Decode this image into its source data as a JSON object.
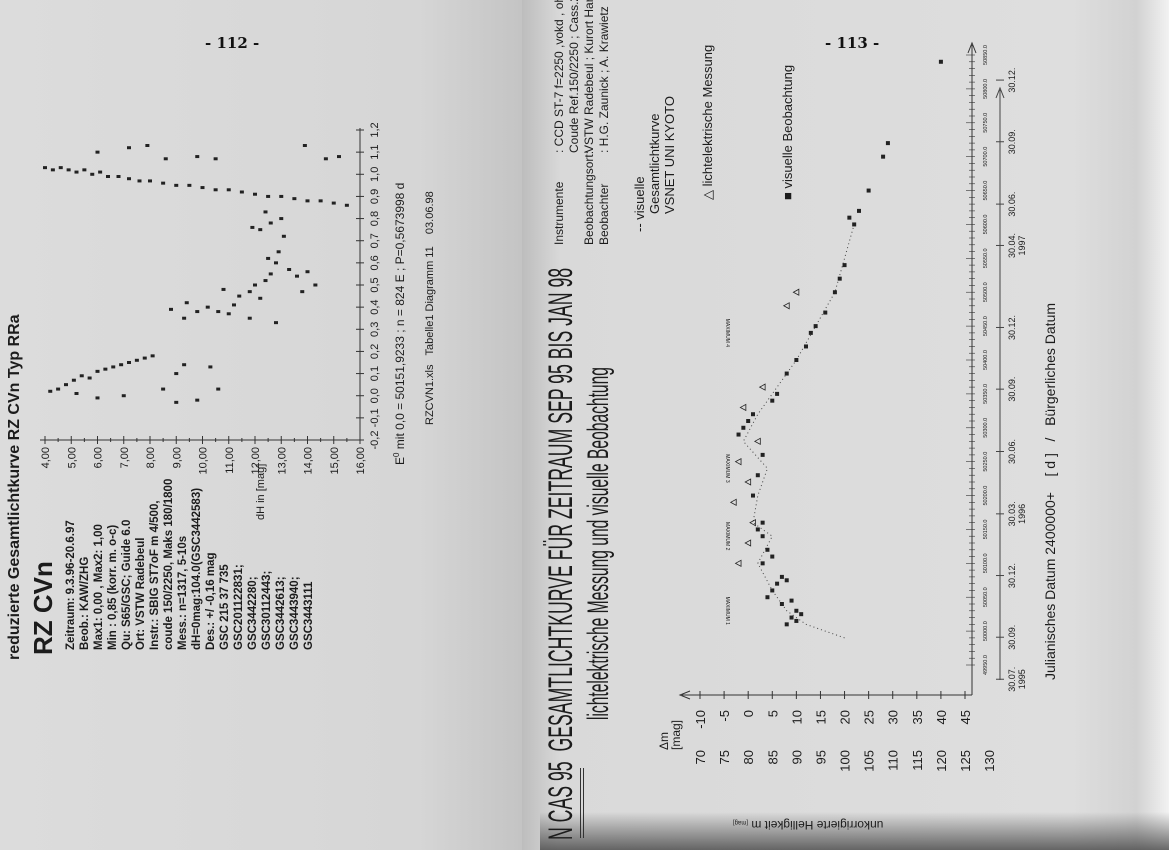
{
  "left_page": {
    "page_number": "- 112 -",
    "heading": "reduzierte Gesamtlichtkurve RZ CVn Typ RRa",
    "star": "RZ CVn",
    "info_lines": [
      "Zeitraum: 9.3.96-20.6.97",
      "Beob.: KAW/ZHG",
      "Max1: 0,00 , Max2: 1,00",
      "Min : 0,85 (korr. m. o-c)",
      "Qu: S65/GSC; Guide 6.0",
      "Ort: VSTW Radebeul",
      "Instr.: SBIG ST7oF m 4/500,",
      "coude 150/2250, Maks 180/1800",
      "Mess.: n=1317, 5-10s",
      "dH=0mag:104.0(GSC3442583)",
      "Des.: +/ -0,16 mag",
      "GSC 215 37 735",
      "GSC201122831;",
      "GSC3442280;",
      "GSC30112443;",
      "GSC3442613;",
      "GSC3443940;",
      "GSC3443111"
    ],
    "caption_epoch": "E",
    "caption_epoch_sup": "0",
    "caption_text": "mit 0,0 = 50151,9233 ; n = 824 E ; P=0,5673998 d",
    "caption_file": "RZCVN1.xls   Tabelle1 Diagramm 11    03.06.98"
  },
  "right_page": {
    "page_number": "- 113 -",
    "title_object": "N CAS 95",
    "title_main": "GESAMTLICHTKURVE FÜR ZEITRAUM SEP 95 BIS JAN 98",
    "subtitle": "lichtelektrische Messung und visuelle Beobachtung",
    "instruments": [
      {
        "label": "Instrumente",
        "value": ":  CCD ST-7 f=2250 ,vokd , ohne Filter , 5,6/1000"
      },
      {
        "label": "",
        "value": "Coude Ref.150/2250 ; Cass.200/3000 ; T 64/840"
      },
      {
        "label": "Beobachtungsort:",
        "value": "VSTW Radebeul ; Kurort Hartha"
      },
      {
        "label": "Beobachter",
        "value": ":  H.G. Zaunick ; A. Krawietz"
      }
    ],
    "legend": {
      "curve_marker": "--",
      "curve_lines": [
        "visuelle",
        "Gesamtlichtkurve",
        "VSNET UNI KYOTO"
      ],
      "photo_marker": "△",
      "photo_label": "lichtelektrische Messung",
      "visual_marker": "■",
      "visual_label": "visuelle Beobachtung"
    },
    "maxima_labels": [
      "MAXIMUM 1",
      "MAXIMUM 2",
      "MAXIMUM 3",
      "MAXIMUM 4"
    ],
    "y_label_delta": "Δm",
    "y_label_unit": "[mag]",
    "y2_label": "unkorrigierte Helligkeit  m",
    "y2_label_unit": "[mag]",
    "x_label": "Julianisches Datum 2400000+    [ d ]   /   Bürgerliches Datum"
  },
  "chart_data": [
    {
      "type": "scatter",
      "title": "reduzierte Gesamtlichtkurve RZ CVn Typ RRa",
      "xlabel": "E",
      "ylabel": "dH in [mag]",
      "xlim": [
        -0.2,
        1.2
      ],
      "ylim": [
        4,
        16
      ],
      "y_inverted": true,
      "x_ticks": [
        "-0,2",
        "-0,1",
        "0,0",
        "0,1",
        "0,2",
        "0,3",
        "0,4",
        "0,5",
        "0,6",
        "0,7",
        "0,8",
        "0,9",
        "1,0",
        "1,1",
        "1,2"
      ],
      "y_ticks": [
        "4,00",
        "5,00",
        "6,00",
        "7,00",
        "8,00",
        "9,00",
        "10,00",
        "11,00",
        "12,00",
        "13,00",
        "14,00",
        "15,00",
        "16,00"
      ],
      "grid": false,
      "points": [
        [
          1.03,
          4.0
        ],
        [
          1.02,
          4.3
        ],
        [
          1.03,
          4.6
        ],
        [
          1.02,
          4.9
        ],
        [
          1.01,
          5.2
        ],
        [
          1.02,
          5.5
        ],
        [
          1.0,
          5.8
        ],
        [
          1.01,
          6.1
        ],
        [
          0.99,
          6.4
        ],
        [
          0.99,
          6.8
        ],
        [
          0.98,
          7.2
        ],
        [
          0.97,
          7.6
        ],
        [
          0.97,
          8.0
        ],
        [
          0.96,
          8.5
        ],
        [
          0.95,
          9.0
        ],
        [
          0.95,
          9.5
        ],
        [
          0.94,
          10.0
        ],
        [
          0.93,
          10.5
        ],
        [
          0.93,
          11.0
        ],
        [
          0.92,
          11.5
        ],
        [
          0.91,
          12.0
        ],
        [
          0.9,
          12.5
        ],
        [
          0.9,
          13.0
        ],
        [
          0.89,
          13.5
        ],
        [
          0.88,
          14.0
        ],
        [
          0.88,
          14.5
        ],
        [
          0.87,
          15.0
        ],
        [
          0.86,
          15.5
        ],
        [
          1.1,
          6.0
        ],
        [
          1.12,
          7.2
        ],
        [
          1.13,
          7.9
        ],
        [
          1.07,
          8.6
        ],
        [
          1.08,
          9.8
        ],
        [
          1.07,
          10.5
        ],
        [
          1.13,
          13.9
        ],
        [
          1.08,
          15.2
        ],
        [
          1.07,
          14.7
        ],
        [
          0.39,
          8.8
        ],
        [
          0.35,
          9.3
        ],
        [
          0.42,
          9.4
        ],
        [
          0.38,
          9.8
        ],
        [
          0.4,
          10.2
        ],
        [
          0.38,
          10.6
        ],
        [
          0.37,
          11.0
        ],
        [
          0.41,
          11.2
        ],
        [
          0.45,
          11.4
        ],
        [
          0.47,
          11.8
        ],
        [
          0.5,
          12.0
        ],
        [
          0.52,
          12.4
        ],
        [
          0.55,
          12.6
        ],
        [
          0.6,
          12.8
        ],
        [
          0.62,
          12.5
        ],
        [
          0.65,
          12.9
        ],
        [
          0.57,
          13.3
        ],
        [
          0.54,
          13.6
        ],
        [
          0.56,
          14.0
        ],
        [
          0.5,
          14.3
        ],
        [
          0.47,
          13.8
        ],
        [
          0.44,
          12.2
        ],
        [
          0.35,
          11.8
        ],
        [
          0.33,
          12.8
        ],
        [
          0.48,
          10.8
        ],
        [
          0.75,
          12.2
        ],
        [
          0.78,
          12.6
        ],
        [
          0.8,
          13.0
        ],
        [
          0.83,
          12.4
        ],
        [
          0.72,
          13.1
        ],
        [
          0.76,
          11.9
        ],
        [
          0.02,
          4.2
        ],
        [
          0.03,
          4.5
        ],
        [
          0.05,
          4.8
        ],
        [
          0.07,
          5.1
        ],
        [
          0.09,
          5.4
        ],
        [
          0.08,
          5.7
        ],
        [
          0.11,
          6.0
        ],
        [
          0.12,
          6.3
        ],
        [
          0.13,
          6.6
        ],
        [
          0.14,
          6.9
        ],
        [
          0.15,
          7.2
        ],
        [
          0.16,
          7.5
        ],
        [
          0.17,
          7.8
        ],
        [
          0.18,
          8.1
        ],
        [
          0.01,
          5.2
        ],
        [
          -0.01,
          6.0
        ],
        [
          0.0,
          7.0
        ],
        [
          0.03,
          8.5
        ],
        [
          -0.03,
          9.0
        ],
        [
          0.14,
          9.3
        ],
        [
          0.13,
          10.3
        ],
        [
          0.03,
          10.6
        ],
        [
          -0.02,
          9.8
        ],
        [
          0.1,
          9.0
        ]
      ]
    },
    {
      "type": "scatter",
      "title": "N CAS 95 GESAMTLICHTKURVE FÜR ZEITRAUM SEP 95 BIS JAN 98",
      "xlabel": "Julianisches Datum 2400000+ [ d ] / Bürgerliches Datum",
      "ylabel": "Δm [mag]",
      "y2label": "unkorrigierte Helligkeit m [mag]",
      "xlim": [
        49950,
        50850
      ],
      "ylim": [
        -10,
        45
      ],
      "y_inverted": true,
      "x_ticks": [
        "49950.0",
        "50000.0",
        "50050.0",
        "50100.0",
        "50150.0",
        "50200.0",
        "50250.0",
        "50300.0",
        "50350.0",
        "50400.0",
        "50450.0",
        "50500.0",
        "50550.0",
        "50600.0",
        "50650.0",
        "50700.0",
        "50750.0",
        "50800.0",
        "50850.0"
      ],
      "y_ticks": [
        "-10",
        "-5",
        "0",
        "5",
        "10",
        "15",
        "20",
        "25",
        "30",
        "35",
        "40",
        "45"
      ],
      "y2_ticks": [
        "70",
        "75",
        "80",
        "85",
        "90",
        "95",
        "100",
        "105",
        "110",
        "115",
        "120",
        "125",
        "130"
      ],
      "date_ticks": [
        {
          "label": "30.07.",
          "year": "1995",
          "jd": 49929
        },
        {
          "label": "30.09.",
          "year": "",
          "jd": 49991
        },
        {
          "label": "30.12.",
          "year": "",
          "jd": 50082
        },
        {
          "label": "30.03.",
          "year": "1996",
          "jd": 50173
        },
        {
          "label": "30.06.",
          "year": "",
          "jd": 50265
        },
        {
          "label": "30.09.",
          "year": "",
          "jd": 50357
        },
        {
          "label": "30.12.",
          "year": "",
          "jd": 50448
        },
        {
          "label": "30.04.",
          "year": "1997",
          "jd": 50569
        },
        {
          "label": "30.06.",
          "year": "",
          "jd": 50630
        },
        {
          "label": "30.09.",
          "year": "",
          "jd": 50722
        },
        {
          "label": "30.12.",
          "year": "",
          "jd": 50813
        }
      ],
      "maxima_jd": [
        50030,
        50140,
        50240,
        50440
      ],
      "grid": false,
      "series": [
        {
          "name": "visuelle Beobachtung",
          "marker": "square",
          "points": [
            [
              50010,
              8
            ],
            [
              50015,
              10
            ],
            [
              50020,
              9
            ],
            [
              50025,
              11
            ],
            [
              50030,
              10
            ],
            [
              50040,
              7
            ],
            [
              50045,
              9
            ],
            [
              50050,
              4
            ],
            [
              50060,
              5
            ],
            [
              50070,
              6
            ],
            [
              50075,
              8
            ],
            [
              50080,
              7
            ],
            [
              50100,
              3
            ],
            [
              50110,
              5
            ],
            [
              50120,
              4
            ],
            [
              50140,
              3
            ],
            [
              50150,
              2
            ],
            [
              50160,
              3
            ],
            [
              50200,
              1
            ],
            [
              50230,
              2
            ],
            [
              50260,
              3
            ],
            [
              50290,
              -2
            ],
            [
              50300,
              -1
            ],
            [
              50310,
              0
            ],
            [
              50320,
              1
            ],
            [
              50340,
              5
            ],
            [
              50350,
              6
            ],
            [
              50380,
              8
            ],
            [
              50400,
              10
            ],
            [
              50420,
              12
            ],
            [
              50440,
              13
            ],
            [
              50450,
              14
            ],
            [
              50470,
              16
            ],
            [
              50500,
              18
            ],
            [
              50520,
              19
            ],
            [
              50540,
              20
            ],
            [
              50600,
              22
            ],
            [
              50610,
              21
            ],
            [
              50620,
              23
            ],
            [
              50650,
              25
            ],
            [
              50700,
              28
            ],
            [
              50720,
              29
            ],
            [
              50840,
              40
            ]
          ]
        },
        {
          "name": "lichtelektrische Messung",
          "marker": "triangle",
          "points": [
            [
              50100,
              -2
            ],
            [
              50130,
              0
            ],
            [
              50160,
              1
            ],
            [
              50190,
              -3
            ],
            [
              50220,
              0
            ],
            [
              50250,
              -2
            ],
            [
              50280,
              2
            ],
            [
              50330,
              -1
            ],
            [
              50360,
              3
            ],
            [
              50480,
              8
            ],
            [
              50500,
              10
            ]
          ]
        },
        {
          "name": "visuelle Gesamtlichtkurve VSNET UNI KYOTO",
          "marker": "dotted-line",
          "points": [
            [
              49990,
              20
            ],
            [
              50010,
              12
            ],
            [
              50030,
              8
            ],
            [
              50060,
              5
            ],
            [
              50100,
              2
            ],
            [
              50140,
              5
            ],
            [
              50160,
              1
            ],
            [
              50200,
              2
            ],
            [
              50240,
              4
            ],
            [
              50280,
              -1
            ],
            [
              50320,
              2
            ],
            [
              50360,
              6
            ],
            [
              50400,
              10
            ],
            [
              50450,
              14
            ],
            [
              50500,
              18
            ],
            [
              50550,
              20
            ],
            [
              50600,
              22
            ]
          ]
        }
      ]
    }
  ]
}
